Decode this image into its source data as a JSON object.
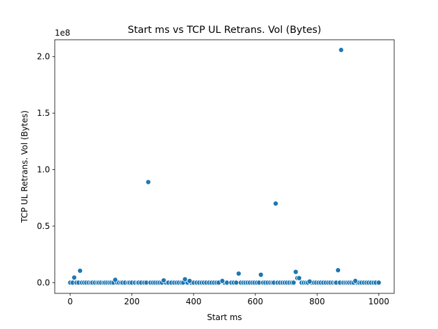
{
  "chart_data": {
    "type": "scatter",
    "title": "Start ms vs TCP UL Retrans. Vol (Bytes)",
    "xlabel": "Start ms",
    "ylabel": "TCP UL Retrans. Vol (Bytes)",
    "y_offset_label": "1e8",
    "xlim": [
      -50,
      1050
    ],
    "ylim": [
      -9500000,
      215000000
    ],
    "xticks": [
      0,
      200,
      400,
      600,
      800,
      1000
    ],
    "xtick_labels": [
      "0",
      "200",
      "400",
      "600",
      "800",
      "1000"
    ],
    "yticks": [
      0,
      50000000,
      100000000,
      150000000,
      200000000
    ],
    "ytick_labels": [
      "0.0",
      "0.5",
      "1.0",
      "1.5",
      "2.0"
    ],
    "grid": false,
    "marker_color": "#1f77b4",
    "outliers": {
      "x": [
        13,
        32,
        146,
        253,
        303,
        372,
        387,
        493,
        546,
        618,
        666,
        731,
        736,
        742,
        776,
        868,
        878,
        924
      ],
      "y": [
        4500000,
        10500000,
        2500000,
        89000000,
        2000000,
        3000000,
        1500000,
        1500000,
        8000000,
        7000000,
        70000000,
        9500000,
        4000000,
        4000000,
        1000000,
        11000000,
        206000000,
        1500000
      ]
    },
    "baseline": {
      "x": [
        0,
        8,
        20,
        27,
        38,
        45,
        52,
        60,
        67,
        72,
        80,
        88,
        93,
        100,
        108,
        113,
        120,
        127,
        133,
        140,
        152,
        158,
        165,
        170,
        178,
        188,
        193,
        200,
        210,
        218,
        222,
        230,
        240,
        247,
        260,
        268,
        275,
        283,
        290,
        297,
        310,
        318,
        328,
        337,
        345,
        352,
        360,
        366,
        380,
        392,
        400,
        410,
        418,
        426,
        433,
        441,
        450,
        458,
        466,
        474,
        481,
        500,
        508,
        522,
        530,
        538,
        553,
        561,
        568,
        575,
        582,
        590,
        597,
        605,
        612,
        625,
        632,
        640,
        648,
        655,
        660,
        672,
        680,
        688,
        695,
        702,
        710,
        718,
        724,
        750,
        757,
        764,
        770,
        783,
        790,
        797,
        805,
        812,
        820,
        828,
        836,
        843,
        851,
        858,
        862,
        874,
        885,
        892,
        898,
        904,
        911,
        918,
        930,
        937,
        944,
        952,
        960,
        967,
        975,
        983,
        990,
        1000
      ],
      "y": [
        0,
        0,
        0,
        0,
        0,
        0,
        0,
        0,
        0,
        0,
        0,
        0,
        0,
        0,
        0,
        0,
        0,
        0,
        0,
        0,
        0,
        0,
        0,
        0,
        0,
        0,
        0,
        0,
        0,
        0,
        0,
        0,
        0,
        0,
        0,
        0,
        0,
        0,
        0,
        0,
        0,
        0,
        0,
        0,
        0,
        0,
        0,
        0,
        0,
        0,
        0,
        0,
        0,
        0,
        0,
        0,
        0,
        0,
        0,
        0,
        0,
        0,
        0,
        0,
        0,
        0,
        0,
        0,
        0,
        0,
        0,
        0,
        0,
        0,
        0,
        0,
        0,
        0,
        0,
        0,
        0,
        0,
        0,
        0,
        0,
        0,
        0,
        0,
        0,
        0,
        0,
        0,
        0,
        0,
        0,
        0,
        0,
        0,
        0,
        0,
        0,
        0,
        0,
        0,
        0,
        0,
        0,
        0,
        0,
        0,
        0,
        0,
        0,
        0,
        0,
        0,
        0,
        0,
        0,
        0,
        0,
        0
      ]
    }
  }
}
